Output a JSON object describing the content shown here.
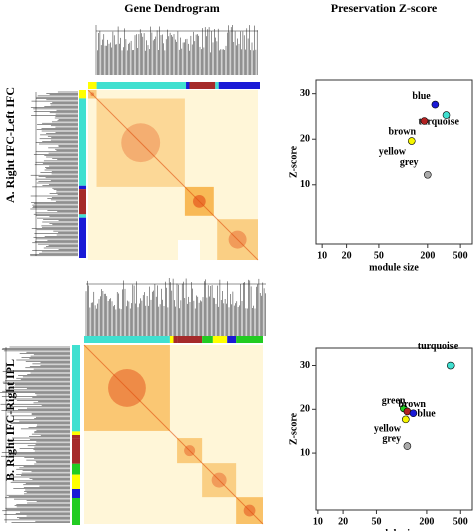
{
  "header": {
    "left_title": "Gene Dendrogram",
    "right_title": "Preservation Z-score"
  },
  "panels": [
    "A. Right IFC-Left IFC",
    "B. Right IFC-Right IPL"
  ],
  "chart_data": [
    {
      "type": "scatter",
      "xlabel": "module size",
      "ylabel": "Z-score",
      "log_x": true,
      "xlim": [
        8.4,
        700
      ],
      "ylim": [
        -3,
        33
      ],
      "xticks": [
        10,
        20,
        50,
        200,
        500
      ],
      "yticks": [
        10,
        20,
        30
      ],
      "series": [
        {
          "name": "blue",
          "color": "#1a1ad6",
          "x": [
            248
          ],
          "values": [
            27.6
          ]
        },
        {
          "name": "turquoise",
          "color": "#40e0d0",
          "x": [
            340
          ],
          "values": [
            25.3
          ]
        },
        {
          "name": "brown",
          "color": "#b22222",
          "x": [
            182
          ],
          "values": [
            24
          ]
        },
        {
          "name": "yellow",
          "color": "#f5f500",
          "x": [
            127
          ],
          "values": [
            19.6
          ]
        },
        {
          "name": "grey",
          "color": "#aaaaaa",
          "x": [
            200
          ],
          "values": [
            12.2
          ]
        }
      ]
    },
    {
      "type": "scatter",
      "xlabel": "module size",
      "ylabel": "Z-score",
      "log_x": true,
      "xlim": [
        9.5,
        690
      ],
      "ylim": [
        -3,
        34
      ],
      "xticks": [
        10,
        20,
        50,
        200,
        500
      ],
      "yticks": [
        10,
        20,
        30
      ],
      "series": [
        {
          "name": "turquoise",
          "color": "#40e0d0",
          "x": [
            385
          ],
          "values": [
            30
          ]
        },
        {
          "name": "green",
          "color": "#22cc22",
          "x": [
            106
          ],
          "values": [
            20.2
          ]
        },
        {
          "name": "brown",
          "color": "#b22222",
          "x": [
            117
          ],
          "values": [
            19.5
          ]
        },
        {
          "name": "blue",
          "color": "#1a1ad6",
          "x": [
            138
          ],
          "values": [
            19.1
          ]
        },
        {
          "name": "yellow",
          "color": "#f5f500",
          "x": [
            112
          ],
          "values": [
            17.7
          ]
        },
        {
          "name": "grey",
          "color": "#aaaaaa",
          "x": [
            117
          ],
          "values": [
            11.6
          ]
        }
      ]
    }
  ]
}
